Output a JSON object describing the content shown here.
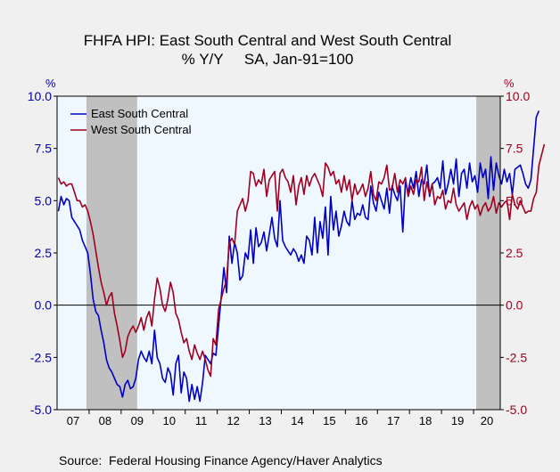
{
  "chart_data": {
    "type": "line",
    "title": "FHFA HPI: East South Central and West South Central",
    "subtitle": "% Y/Y     SA, Jan-91=100",
    "source": "Source:  Federal Housing Finance Agency/Haver Analytics",
    "left_axis_label": "%",
    "right_axis_label": "%",
    "ylim": [
      -5.0,
      10.0
    ],
    "yticks": [
      "10.0",
      "7.5",
      "5.0",
      "2.5",
      "0.0",
      "-2.5",
      "-5.0"
    ],
    "x_tick_labels": [
      "07",
      "08",
      "09",
      "10",
      "11",
      "12",
      "13",
      "14",
      "15",
      "16",
      "17",
      "18",
      "19",
      "20"
    ],
    "x_range": [
      "2007-01",
      "2020-10"
    ],
    "recessions": [
      [
        "2007-12",
        "2009-06"
      ],
      [
        "2020-02",
        "2020-10"
      ]
    ],
    "colors": {
      "left_axis": "#0000a0",
      "right_axis": "#a00020",
      "recession": "#c0c0c0",
      "plot_bg": "#f0f8ff"
    },
    "legend_position": "top-left",
    "series": [
      {
        "name": "East South Central",
        "color": "#0000c0",
        "start": "2007-01",
        "values": [
          4.5,
          5.2,
          4.8,
          5.1,
          5.0,
          4.2,
          4.0,
          3.8,
          3.6,
          3.1,
          2.8,
          2.5,
          1.5,
          0.3,
          -0.3,
          -0.5,
          -1.2,
          -1.8,
          -2.6,
          -3.0,
          -3.2,
          -3.5,
          -3.8,
          -3.9,
          -4.4,
          -3.8,
          -3.6,
          -4.0,
          -3.9,
          -3.5,
          -2.6,
          -2.2,
          -2.5,
          -2.7,
          -2.2,
          -2.8,
          -1.2,
          -2.5,
          -2.8,
          -3.5,
          -3.7,
          -3.0,
          -3.3,
          -4.3,
          -2.8,
          -2.4,
          -4.2,
          -3.2,
          -3.5,
          -4.6,
          -3.8,
          -4.5,
          -3.9,
          -4.6,
          -3.7,
          -2.4,
          -2.6,
          -2.8,
          -2.3,
          -2.4,
          -1.0,
          0.4,
          1.8,
          0.6,
          3.3,
          2.0,
          3.0,
          2.5,
          1.2,
          1.4,
          2.5,
          2.2,
          3.6,
          2.0,
          3.7,
          2.8,
          3.0,
          3.5,
          2.6,
          3.4,
          4.2,
          3.2,
          2.8,
          5.0,
          3.1,
          2.8,
          2.6,
          2.4,
          2.7,
          2.5,
          2.1,
          2.4,
          2.0,
          3.3,
          3.1,
          2.4,
          4.2,
          2.5,
          4.0,
          3.2,
          4.7,
          2.4,
          5.2,
          3.6,
          4.5,
          3.3,
          3.8,
          4.5,
          4.0,
          3.8,
          5.0,
          4.1,
          4.4,
          4.3,
          4.8,
          4.2,
          4.1,
          5.7,
          4.9,
          4.5,
          5.4,
          5.0,
          4.6,
          5.6,
          4.4,
          5.7,
          5.3,
          5.0,
          5.7,
          3.5,
          5.9,
          5.4,
          6.1,
          5.6,
          6.4,
          5.2,
          6.0,
          5.8,
          6.7,
          5.2,
          5.8,
          5.9,
          6.1,
          5.6,
          6.9,
          5.3,
          5.8,
          6.5,
          5.8,
          7.0,
          5.2,
          6.3,
          6.5,
          5.6,
          6.8,
          5.9,
          6.2,
          5.4,
          6.8,
          6.1,
          6.5,
          5.1,
          7.1,
          5.5,
          6.8,
          6.2,
          5.8,
          6.5,
          5.9,
          6.3,
          5.3,
          6.5,
          6.6,
          6.7,
          6.3,
          5.8,
          5.6,
          6.0,
          7.5,
          9.0,
          9.3
        ]
      },
      {
        "name": "West South Central",
        "color": "#a00020",
        "start": "2007-01",
        "values": [
          6.1,
          5.8,
          5.9,
          5.7,
          5.8,
          5.8,
          5.4,
          5.0,
          5.0,
          4.7,
          4.8,
          4.5,
          4.0,
          3.4,
          2.6,
          1.8,
          1.1,
          0.6,
          0.0,
          0.4,
          0.6,
          -0.4,
          -1.0,
          -1.7,
          -2.5,
          -2.2,
          -1.5,
          -1.2,
          -1.0,
          -1.3,
          -1.0,
          -0.6,
          -1.2,
          -0.6,
          -0.3,
          -1.0,
          0.3,
          1.3,
          0.8,
          0.0,
          -0.3,
          0.3,
          1.1,
          0.6,
          -0.4,
          -0.7,
          -1.3,
          -1.8,
          -1.6,
          -2.2,
          -2.6,
          -1.9,
          -2.3,
          -2.6,
          -2.2,
          -2.6,
          -3.1,
          -3.4,
          -1.6,
          -1.9,
          -0.2,
          0.3,
          0.8,
          1.2,
          3.0,
          3.2,
          2.9,
          4.5,
          4.8,
          5.1,
          4.5,
          5.0,
          6.4,
          6.3,
          5.7,
          6.0,
          5.8,
          6.5,
          5.2,
          6.0,
          6.2,
          6.4,
          4.5,
          6.3,
          6.5,
          6.1,
          5.9,
          5.4,
          6.2,
          4.8,
          5.7,
          6.1,
          5.3,
          6.2,
          5.7,
          6.1,
          6.3,
          6.0,
          5.7,
          5.2,
          6.8,
          6.6,
          6.2,
          6.4,
          5.8,
          6.0,
          5.4,
          6.2,
          5.5,
          6.0,
          5.0,
          5.8,
          5.3,
          5.5,
          5.8,
          5.2,
          5.6,
          6.4,
          5.3,
          5.0,
          5.9,
          5.8,
          6.1,
          6.7,
          5.5,
          5.6,
          6.3,
          5.4,
          6.0,
          5.8,
          6.1,
          5.2,
          5.7,
          5.3,
          6.0,
          5.9,
          6.6,
          5.0,
          5.9,
          5.3,
          5.8,
          4.8,
          5.2,
          5.1,
          5.5,
          4.6,
          5.0,
          4.9,
          5.6,
          4.8,
          4.5,
          4.7,
          4.9,
          4.1,
          4.7,
          5.0,
          4.6,
          4.8,
          4.3,
          4.7,
          4.9,
          4.5,
          4.7,
          5.2,
          4.4,
          4.9,
          4.7,
          4.9,
          5.0,
          4.1,
          5.3,
          4.8,
          4.6,
          5.0,
          4.7,
          4.4,
          4.5,
          4.5,
          5.1,
          5.4,
          6.7,
          7.2,
          7.7
        ]
      }
    ]
  }
}
